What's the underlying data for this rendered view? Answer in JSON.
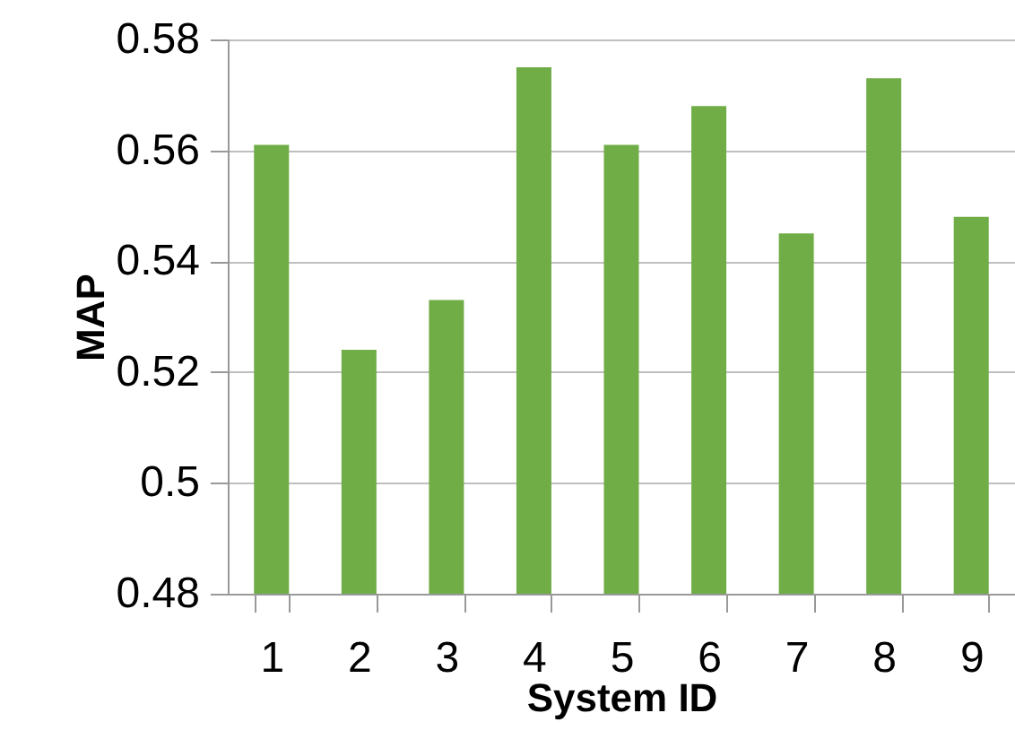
{
  "chart_data": {
    "type": "bar",
    "xlabel": "System ID",
    "ylabel": "MAP",
    "categories": [
      "1",
      "2",
      "3",
      "4",
      "5",
      "6",
      "7",
      "8",
      "9"
    ],
    "values": [
      0.561,
      0.524,
      0.533,
      0.575,
      0.561,
      0.568,
      0.545,
      0.573,
      0.548
    ],
    "color": "#70ad47",
    "ylim": [
      0.48,
      0.58
    ],
    "yticks": [
      0.48,
      0.5,
      0.52,
      0.54,
      0.56,
      0.58
    ],
    "grid": "y"
  }
}
